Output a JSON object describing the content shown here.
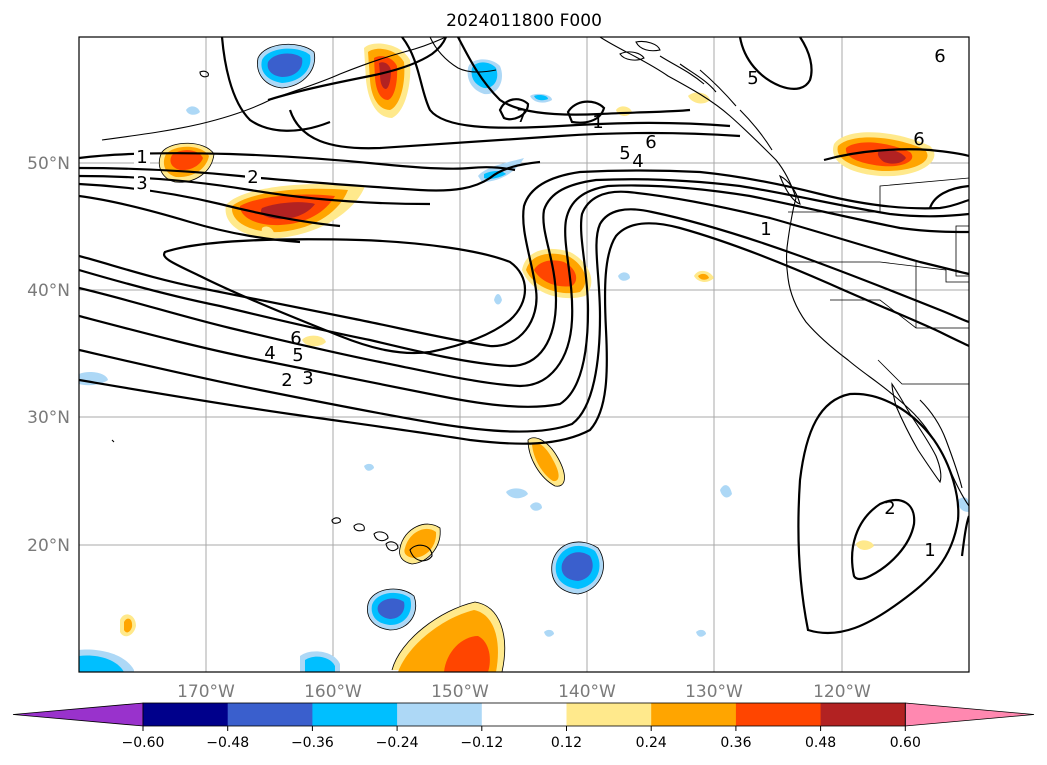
{
  "title": "2024011800 F000",
  "longitude_labels": [
    "170°W",
    "160°W",
    "150°W",
    "140°W",
    "130°W",
    "120°W"
  ],
  "latitude_labels": [
    "50°N",
    "40°N",
    "30°N",
    "20°N"
  ],
  "colorbar": {
    "colors": [
      "#9932cc",
      "#00008b",
      "#3a5fcd",
      "#00bfff",
      "#add8f6",
      "#ffffff",
      "#ffe98c",
      "#ffa500",
      "#ff4500",
      "#b22222",
      "#ff88b0"
    ],
    "tick_labels": [
      "−0.60",
      "−0.48",
      "−0.36",
      "−0.24",
      "−0.12",
      "0.12",
      "0.24",
      "0.36",
      "0.48",
      "0.60"
    ]
  },
  "contour_labels": {
    "c1": "1",
    "c2": "2",
    "c3": "3",
    "c4": "4",
    "c5": "5",
    "c6": "6",
    "c7": "7",
    "c8": "1",
    "c9": "5",
    "c10": "6",
    "c11": "4",
    "c12": "5",
    "c13": "6",
    "c14": "1",
    "c15": "6",
    "c16": "5",
    "c17": "4",
    "c18": "2",
    "c19": "3",
    "c20": "2",
    "c21": "1"
  }
}
